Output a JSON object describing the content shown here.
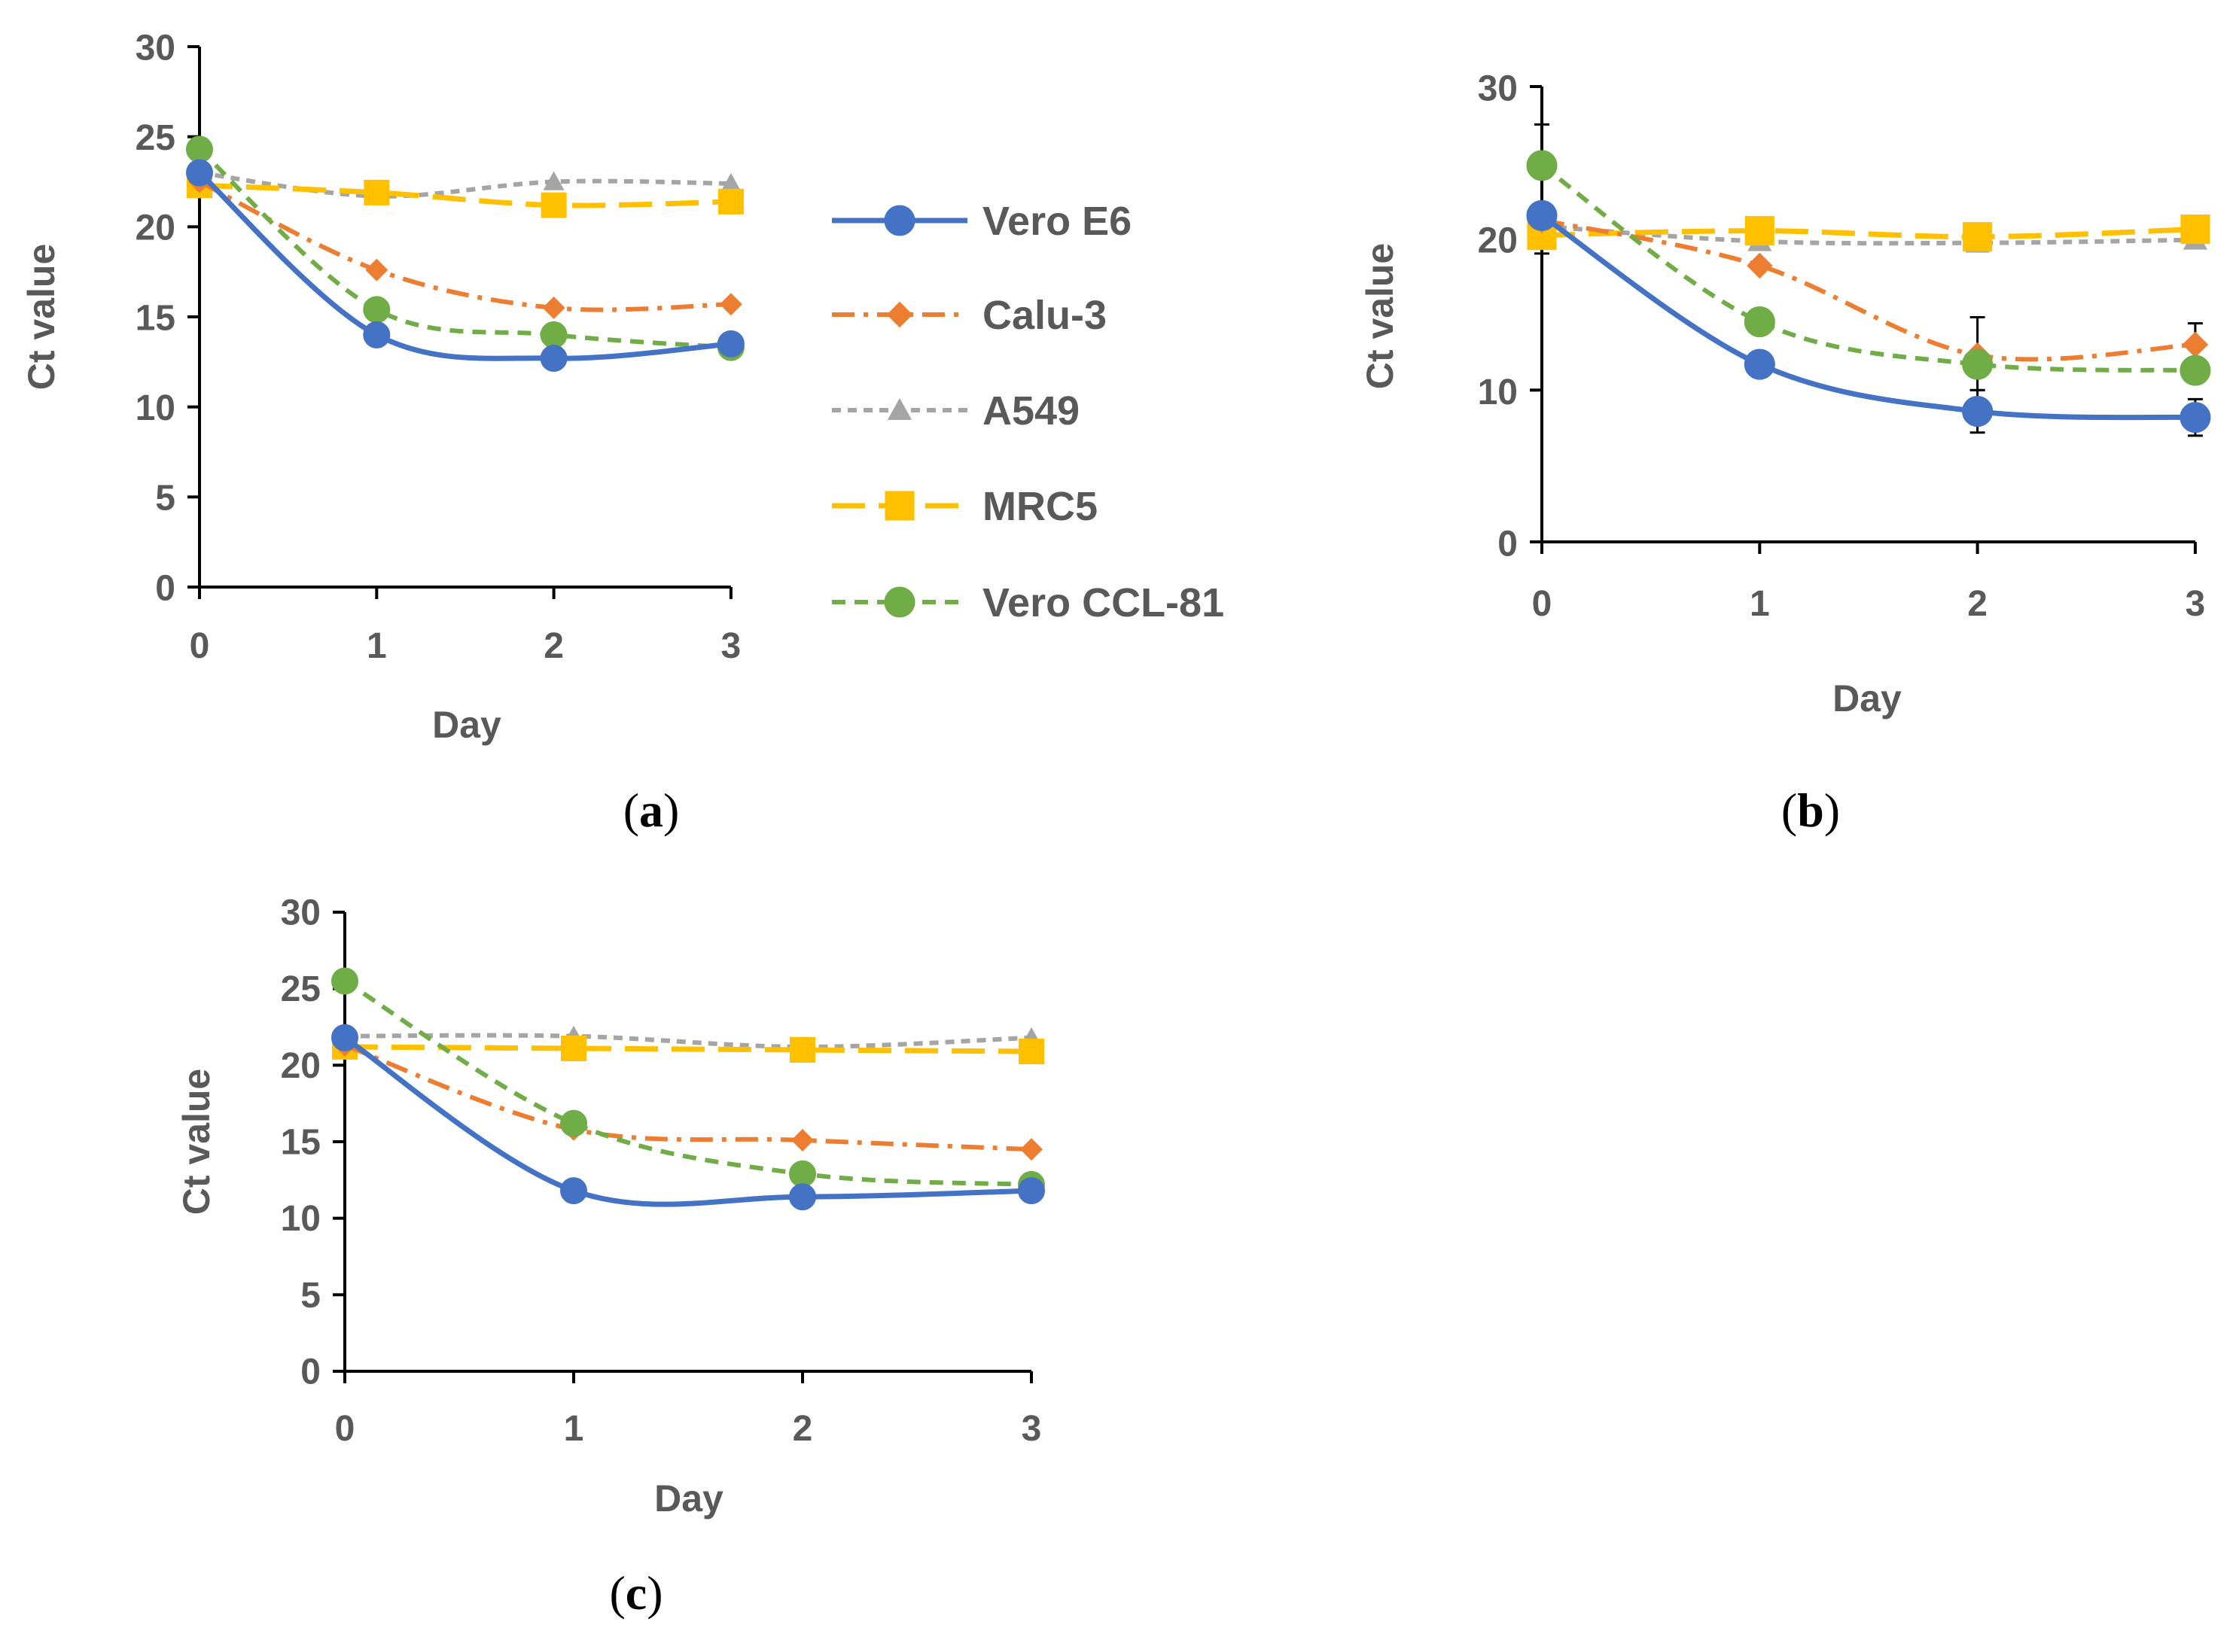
{
  "colors": {
    "Vero E6": "#4472C4",
    "Calu-3": "#ED7D31",
    "A549": "#A5A5A5",
    "MRC5": "#FFC000",
    "Vero CCL-81": "#70AD47",
    "axis": "#000000",
    "text": "#595959"
  },
  "legend": {
    "entries": [
      "Vero E6",
      "Calu-3",
      "A549",
      "MRC5",
      "Vero CCL-81"
    ]
  },
  "chart_data": [
    {
      "id": "a",
      "type": "line",
      "panel_label": "a",
      "xlabel": "Day",
      "ylabel": "Ct value",
      "ylim": [
        0,
        30
      ],
      "yticks": [
        0,
        5,
        10,
        15,
        20,
        25,
        30
      ],
      "x": [
        0,
        1,
        2,
        3
      ],
      "series": [
        {
          "name": "Vero E6",
          "values": [
            23.0,
            14.0,
            12.7,
            13.5
          ]
        },
        {
          "name": "Calu-3",
          "values": [
            22.5,
            17.6,
            15.5,
            15.7
          ]
        },
        {
          "name": "A549",
          "values": [
            23.0,
            21.7,
            22.5,
            22.4
          ]
        },
        {
          "name": "MRC5",
          "values": [
            22.3,
            21.9,
            21.2,
            21.4
          ]
        },
        {
          "name": "Vero CCL-81",
          "values": [
            24.3,
            15.4,
            14.0,
            13.3
          ]
        }
      ]
    },
    {
      "id": "b",
      "type": "line",
      "panel_label": "b",
      "xlabel": "Day",
      "ylabel": "Ct value",
      "ylim": [
        0,
        30
      ],
      "yticks": [
        0,
        10,
        20,
        30
      ],
      "x": [
        0,
        1,
        2,
        3
      ],
      "series": [
        {
          "name": "Vero E6",
          "values": [
            21.5,
            11.7,
            8.6,
            8.2
          ]
        },
        {
          "name": "Calu-3",
          "values": [
            21.2,
            18.2,
            12.3,
            13.0
          ]
        },
        {
          "name": "A549",
          "values": [
            20.8,
            19.8,
            19.7,
            19.9
          ]
        },
        {
          "name": "MRC5",
          "values": [
            20.2,
            20.5,
            20.1,
            20.6
          ]
        },
        {
          "name": "Vero CCL-81",
          "values": [
            24.8,
            14.5,
            11.7,
            11.3
          ]
        }
      ],
      "error_bars": [
        {
          "name": "A549",
          "x": 0,
          "low": 19.0,
          "high": 27.5
        },
        {
          "name": "A549",
          "x": 1,
          "low": 19.5,
          "high": 20.2
        },
        {
          "name": "Calu-3",
          "x": 2,
          "low": 10.0,
          "high": 14.8
        },
        {
          "name": "Vero E6",
          "x": 2,
          "low": 7.2,
          "high": 10.0
        },
        {
          "name": "Calu-3",
          "x": 3,
          "low": 11.6,
          "high": 14.4
        },
        {
          "name": "Vero E6",
          "x": 3,
          "low": 7.0,
          "high": 9.4
        }
      ]
    },
    {
      "id": "c",
      "type": "line",
      "panel_label": "c",
      "xlabel": "Day",
      "ylabel": "Ct value",
      "ylim": [
        0,
        30
      ],
      "yticks": [
        0,
        5,
        10,
        15,
        20,
        25,
        30
      ],
      "x": [
        0,
        1,
        2,
        3
      ],
      "series": [
        {
          "name": "Vero E6",
          "values": [
            21.8,
            11.8,
            11.4,
            11.8
          ]
        },
        {
          "name": "Calu-3",
          "values": [
            21.3,
            15.8,
            15.1,
            14.5
          ]
        },
        {
          "name": "A549",
          "values": [
            21.9,
            21.9,
            21.2,
            21.8
          ]
        },
        {
          "name": "MRC5",
          "values": [
            21.2,
            21.1,
            21.0,
            20.9
          ]
        },
        {
          "name": "Vero CCL-81",
          "values": [
            25.5,
            16.2,
            12.9,
            12.2
          ]
        }
      ]
    }
  ]
}
